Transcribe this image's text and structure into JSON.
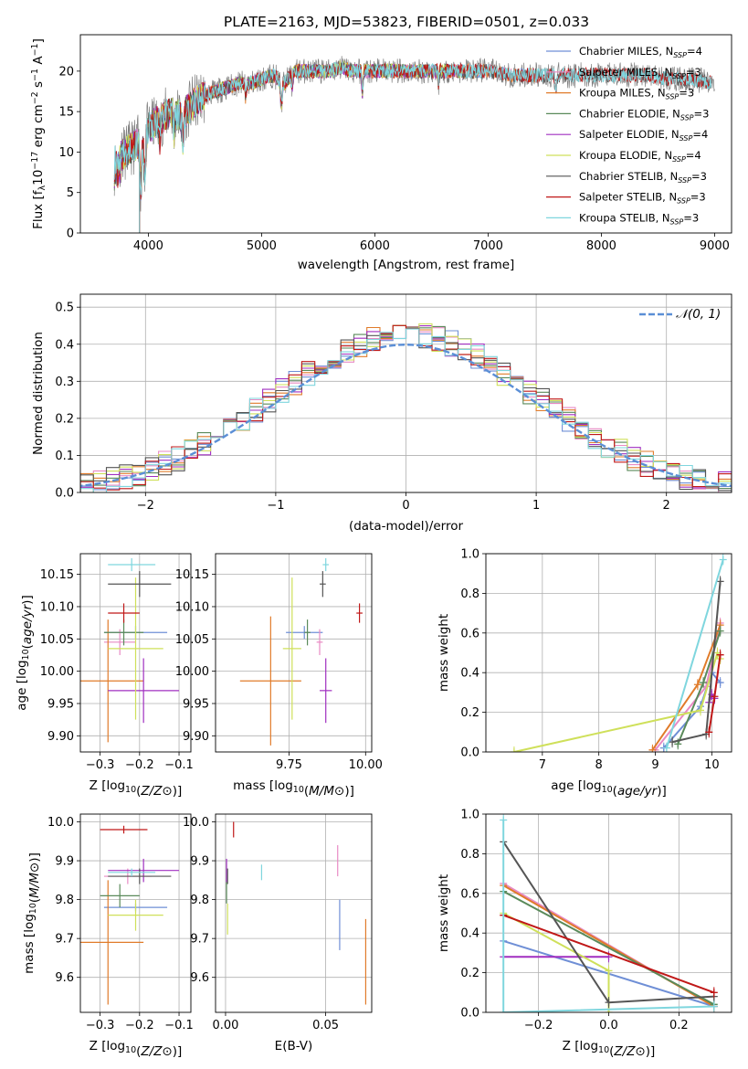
{
  "figure_title": "PLATE=2163, MJD=53823, FIBERID=0501, z=0.033",
  "colors": {
    "Chabrier MILES": "#6f8fd6",
    "Salpeter MILES": "#e88ac4",
    "Kroupa MILES": "#e07b2a",
    "Chabrier ELODIE": "#5a8a5a",
    "Salpeter ELODIE": "#a02fc0",
    "Kroupa ELODIE": "#cfe05a",
    "Chabrier STELIB": "#555555",
    "Salpeter STELIB": "#c01818",
    "Kroupa STELIB": "#7fd6de",
    "gaussian": "#5b8fd6",
    "spectrum": "#808080"
  },
  "chart_data": [
    {
      "id": "spectrum",
      "type": "line",
      "xlabel": "wavelength [Angstrom, rest frame]",
      "ylabel": "Flux [f_λ 10^-17 erg cm^-2 s^-1 A^-1]",
      "xlim": [
        3400,
        9150
      ],
      "ylim": [
        0,
        24.5
      ],
      "xticks": [
        4000,
        5000,
        6000,
        7000,
        8000,
        9000
      ],
      "yticks": [
        0,
        5,
        10,
        15,
        20
      ],
      "grid": false,
      "legend_position": "right",
      "data_range": [
        3700,
        9000
      ],
      "model_ranges": {
        "MILES": [
          3700,
          7430
        ],
        "ELODIE": [
          3700,
          6800
        ],
        "STELIB": [
          3700,
          8970
        ]
      },
      "continuum": [
        [
          3700,
          9
        ],
        [
          3800,
          10
        ],
        [
          3900,
          11
        ],
        [
          4000,
          13
        ],
        [
          4100,
          14
        ],
        [
          4200,
          15
        ],
        [
          4300,
          14.5
        ],
        [
          4400,
          16
        ],
        [
          4500,
          17
        ],
        [
          4600,
          17.5
        ],
        [
          4700,
          18
        ],
        [
          4800,
          18.5
        ],
        [
          4900,
          18.5
        ],
        [
          5000,
          19
        ],
        [
          5100,
          19.5
        ],
        [
          5200,
          18.5
        ],
        [
          5300,
          20
        ],
        [
          5400,
          20
        ],
        [
          5500,
          20
        ],
        [
          5600,
          20
        ],
        [
          5700,
          20.5
        ],
        [
          5800,
          20
        ],
        [
          5900,
          20
        ],
        [
          6000,
          20
        ],
        [
          6200,
          20
        ],
        [
          6400,
          20
        ],
        [
          6600,
          20
        ],
        [
          6800,
          20
        ],
        [
          7000,
          20
        ],
        [
          7200,
          19.5
        ],
        [
          7400,
          19.5
        ],
        [
          7600,
          19.5
        ],
        [
          7800,
          19.5
        ],
        [
          8000,
          19.5
        ],
        [
          8200,
          19.5
        ],
        [
          8400,
          19.5
        ],
        [
          8600,
          19
        ],
        [
          8800,
          19
        ],
        [
          9000,
          18.5
        ]
      ],
      "legend": [
        {
          "label": "Chabrier MILES, N",
          "n": 4
        },
        {
          "label": "Salpeter MILES, N",
          "n": 3
        },
        {
          "label": "Kroupa MILES, N",
          "n": 3
        },
        {
          "label": "Chabrier ELODIE, N",
          "n": 3
        },
        {
          "label": "Salpeter ELODIE, N",
          "n": 4
        },
        {
          "label": "Kroupa ELODIE, N",
          "n": 4
        },
        {
          "label": "Chabrier STELIB, N",
          "n": 3
        },
        {
          "label": "Salpeter STELIB, N",
          "n": 3
        },
        {
          "label": "Kroupa STELIB, N",
          "n": 3
        }
      ],
      "legend_sub": "SSP"
    },
    {
      "id": "residuals",
      "type": "histogram",
      "xlabel": "(data-model)/error",
      "ylabel": "Normed distribution",
      "xlim": [
        -2.5,
        2.5
      ],
      "ylim": [
        0,
        0.535
      ],
      "xticks": [
        -2,
        -1,
        0,
        1,
        2
      ],
      "yticks": [
        0,
        0.1,
        0.2,
        0.3,
        0.4,
        0.5
      ],
      "grid": true,
      "bin_width": 0.1,
      "legend": {
        "label": "𝒩(0, 1)",
        "position": "top-right"
      }
    },
    {
      "id": "age_vs_Z",
      "type": "errorbar",
      "xlabel": "Z [log10(Z/Z⊙)]",
      "ylabel": "age  [log10(age/yr)]",
      "xlim": [
        -0.35,
        -0.07
      ],
      "ylim": [
        9.875,
        10.182
      ],
      "xticks": [
        -0.3,
        -0.2,
        -0.1
      ],
      "yticks": [
        9.9,
        9.95,
        10.0,
        10.05,
        10.1,
        10.15
      ],
      "grid": true,
      "points": [
        {
          "model": "Chabrier MILES",
          "x": -0.21,
          "xerr": 0.08,
          "y": 10.06,
          "yerr": 0.01
        },
        {
          "model": "Salpeter MILES",
          "x": -0.25,
          "xerr": 0.04,
          "y": 10.045,
          "yerr": 0.02
        },
        {
          "model": "Kroupa MILES",
          "x": -0.28,
          "xerr": 0.09,
          "y": 9.985,
          "yerr": 0.095
        },
        {
          "model": "Chabrier ELODIE",
          "x": -0.24,
          "xerr": 0.05,
          "y": 10.06,
          "yerr": 0.02
        },
        {
          "model": "Salpeter ELODIE",
          "x": -0.19,
          "xerr": 0.09,
          "y": 9.97,
          "yerr": 0.05
        },
        {
          "model": "Kroupa ELODIE",
          "x": -0.21,
          "xerr": 0.07,
          "y": 10.035,
          "yerr": 0.11
        },
        {
          "model": "Chabrier STELIB",
          "x": -0.2,
          "xerr": 0.08,
          "y": 10.135,
          "yerr": 0.02
        },
        {
          "model": "Salpeter STELIB",
          "x": -0.24,
          "xerr": 0.04,
          "y": 10.09,
          "yerr": 0.015
        },
        {
          "model": "Kroupa STELIB",
          "x": -0.22,
          "xerr": 0.06,
          "y": 10.165,
          "yerr": 0.01
        }
      ]
    },
    {
      "id": "age_vs_mass",
      "type": "errorbar",
      "xlabel": "mass [log10(M/M⊙)]",
      "ylabel": "",
      "xlim": [
        9.51,
        10.02
      ],
      "ylim": [
        9.875,
        10.182
      ],
      "xticks": [
        9.75,
        10.0
      ],
      "yticks": [
        9.9,
        9.95,
        10.0,
        10.05,
        10.1,
        10.15
      ],
      "grid": true,
      "points": [
        {
          "model": "Chabrier MILES",
          "x": 9.8,
          "xerr": 0.06,
          "y": 10.06,
          "yerr": 0.01
        },
        {
          "model": "Salpeter MILES",
          "x": 9.85,
          "xerr": 0.01,
          "y": 10.045,
          "yerr": 0.02
        },
        {
          "model": "Kroupa MILES",
          "x": 9.69,
          "xerr": 0.1,
          "y": 9.985,
          "yerr": 0.1
        },
        {
          "model": "Chabrier ELODIE",
          "x": 9.81,
          "xerr": 0.01,
          "y": 10.06,
          "yerr": 0.02
        },
        {
          "model": "Salpeter ELODIE",
          "x": 9.87,
          "xerr": 0.02,
          "y": 9.97,
          "yerr": 0.05
        },
        {
          "model": "Kroupa ELODIE",
          "x": 9.76,
          "xerr": 0.03,
          "y": 10.035,
          "yerr": 0.11
        },
        {
          "model": "Chabrier STELIB",
          "x": 9.86,
          "xerr": 0.01,
          "y": 10.135,
          "yerr": 0.02
        },
        {
          "model": "Salpeter STELIB",
          "x": 9.98,
          "xerr": 0.01,
          "y": 10.09,
          "yerr": 0.015
        },
        {
          "model": "Kroupa STELIB",
          "x": 9.87,
          "xerr": 0.01,
          "y": 10.165,
          "yerr": 0.01
        }
      ]
    },
    {
      "id": "mass_weight_vs_age",
      "type": "line",
      "xlabel": "age  [log10(age/yr)]",
      "ylabel": "mass weight",
      "xlim": [
        6.0,
        10.35
      ],
      "ylim": [
        0,
        1.0
      ],
      "xticks": [
        7,
        8,
        9,
        10
      ],
      "yticks": [
        0,
        0.2,
        0.4,
        0.6,
        0.8,
        1.0
      ],
      "grid": true,
      "series": [
        {
          "model": "Chabrier MILES",
          "points": [
            [
              9.15,
              0.02
            ],
            [
              9.8,
              0.23
            ],
            [
              10.0,
              0.4
            ],
            [
              10.15,
              0.35
            ]
          ]
        },
        {
          "model": "Salpeter MILES",
          "points": [
            [
              9.0,
              0.01
            ],
            [
              9.9,
              0.33
            ],
            [
              10.15,
              0.65
            ]
          ]
        },
        {
          "model": "Kroupa MILES",
          "points": [
            [
              8.95,
              0.01
            ],
            [
              9.75,
              0.34
            ],
            [
              10.15,
              0.64
            ]
          ]
        },
        {
          "model": "Chabrier ELODIE",
          "points": [
            [
              9.4,
              0.04
            ],
            [
              9.85,
              0.35
            ],
            [
              10.15,
              0.61
            ]
          ]
        },
        {
          "model": "Salpeter ELODIE",
          "points": [
            [
              9.95,
              0.25
            ],
            [
              10.0,
              0.29
            ],
            [
              10.05,
              0.27
            ]
          ]
        },
        {
          "model": "Kroupa ELODIE",
          "points": [
            [
              6.5,
              0.0
            ],
            [
              9.8,
              0.21
            ],
            [
              10.1,
              0.5
            ],
            [
              10.15,
              0.47
            ]
          ]
        },
        {
          "model": "Chabrier STELIB",
          "points": [
            [
              9.3,
              0.05
            ],
            [
              9.9,
              0.09
            ],
            [
              10.15,
              0.86
            ]
          ]
        },
        {
          "model": "Salpeter STELIB",
          "points": [
            [
              9.95,
              0.1
            ],
            [
              10.05,
              0.28
            ],
            [
              10.15,
              0.49
            ]
          ]
        },
        {
          "model": "Kroupa STELIB",
          "points": [
            [
              9.2,
              0.02
            ],
            [
              10.2,
              0.97
            ]
          ]
        }
      ]
    },
    {
      "id": "mass_vs_Z",
      "type": "errorbar",
      "xlabel": "Z [log10(Z/Z⊙)]",
      "ylabel": "mass [log10(M/M⊙)]",
      "xlim": [
        -0.35,
        -0.07
      ],
      "ylim": [
        9.51,
        10.02
      ],
      "xticks": [
        -0.3,
        -0.2,
        -0.1
      ],
      "yticks": [
        9.6,
        9.7,
        9.8,
        9.9,
        10.0
      ],
      "grid": true,
      "points": [
        {
          "model": "Chabrier MILES",
          "x": -0.21,
          "xerr": 0.08,
          "y": 9.78,
          "yerr": 0.01
        },
        {
          "model": "Salpeter MILES",
          "x": -0.23,
          "xerr": 0.06,
          "y": 9.86,
          "yerr": 0.02
        },
        {
          "model": "Kroupa MILES",
          "x": -0.28,
          "xerr": 0.09,
          "y": 9.69,
          "yerr": 0.16
        },
        {
          "model": "Chabrier ELODIE",
          "x": -0.25,
          "xerr": 0.05,
          "y": 9.81,
          "yerr": 0.03
        },
        {
          "model": "Salpeter ELODIE",
          "x": -0.19,
          "xerr": 0.09,
          "y": 9.875,
          "yerr": 0.03
        },
        {
          "model": "Kroupa ELODIE",
          "x": -0.21,
          "xerr": 0.07,
          "y": 9.76,
          "yerr": 0.04
        },
        {
          "model": "Chabrier STELIB",
          "x": -0.2,
          "xerr": 0.08,
          "y": 9.86,
          "yerr": 0.02
        },
        {
          "model": "Salpeter STELIB",
          "x": -0.24,
          "xerr": 0.06,
          "y": 9.98,
          "yerr": 0.01
        },
        {
          "model": "Kroupa STELIB",
          "x": -0.22,
          "xerr": 0.06,
          "y": 9.87,
          "yerr": 0.01
        }
      ]
    },
    {
      "id": "mass_vs_ebv",
      "type": "errorbar",
      "xlabel": "E(B-V)",
      "ylabel": "",
      "xlim": [
        -0.005,
        0.073
      ],
      "ylim": [
        9.51,
        10.02
      ],
      "xticks": [
        0.0,
        0.05
      ],
      "yticks": [
        9.6,
        9.7,
        9.8,
        9.9,
        10.0
      ],
      "grid": true,
      "points": [
        {
          "model": "Chabrier MILES",
          "x": 0.057,
          "y": 9.735,
          "yerr": 0.065
        },
        {
          "model": "Salpeter MILES",
          "x": 0.056,
          "y": 9.9,
          "yerr": 0.04
        },
        {
          "model": "Kroupa MILES",
          "x": 0.07,
          "y": 9.64,
          "yerr": 0.11
        },
        {
          "model": "Chabrier ELODIE",
          "x": 0.0005,
          "y": 9.82,
          "yerr": 0.03
        },
        {
          "model": "Salpeter ELODIE",
          "x": 0.0005,
          "y": 9.875,
          "yerr": 0.03
        },
        {
          "model": "Kroupa ELODIE",
          "x": 0.001,
          "y": 9.75,
          "yerr": 0.04
        },
        {
          "model": "Chabrier STELIB",
          "x": 0.001,
          "y": 9.86,
          "yerr": 0.02
        },
        {
          "model": "Salpeter STELIB",
          "x": 0.004,
          "y": 9.98,
          "yerr": 0.02
        },
        {
          "model": "Kroupa STELIB",
          "x": 0.018,
          "y": 9.87,
          "yerr": 0.02
        }
      ]
    },
    {
      "id": "mass_weight_vs_Z",
      "type": "line",
      "xlabel": "Z [log10(Z/Z⊙)]",
      "ylabel": "mass weight",
      "xlim": [
        -0.35,
        0.35
      ],
      "ylim": [
        0,
        1.0
      ],
      "xticks": [
        -0.2,
        0.0,
        0.2
      ],
      "yticks": [
        0,
        0.2,
        0.4,
        0.6,
        0.8,
        1.0
      ],
      "grid": true,
      "series": [
        {
          "model": "Chabrier MILES",
          "points": [
            [
              -0.3,
              0.36
            ],
            [
              0.3,
              0.03
            ]
          ]
        },
        {
          "model": "Salpeter MILES",
          "points": [
            [
              -0.3,
              0.65
            ],
            [
              0.3,
              0.03
            ]
          ]
        },
        {
          "model": "Kroupa MILES",
          "points": [
            [
              -0.3,
              0.64
            ],
            [
              0.3,
              0.03
            ]
          ]
        },
        {
          "model": "Chabrier ELODIE",
          "points": [
            [
              -0.3,
              0.61
            ],
            [
              0.3,
              0.04
            ]
          ]
        },
        {
          "model": "Salpeter ELODIE",
          "points": [
            [
              -0.3,
              0.28
            ],
            [
              0.0,
              0.28
            ]
          ]
        },
        {
          "model": "Kroupa ELODIE",
          "points": [
            [
              -0.3,
              0.5
            ],
            [
              0.0,
              0.21
            ],
            [
              0.0,
              0.0
            ]
          ]
        },
        {
          "model": "Chabrier STELIB",
          "points": [
            [
              -0.3,
              0.86
            ],
            [
              0.0,
              0.05
            ],
            [
              0.3,
              0.08
            ]
          ]
        },
        {
          "model": "Salpeter STELIB",
          "points": [
            [
              -0.3,
              0.49
            ],
            [
              0.3,
              0.1
            ]
          ]
        },
        {
          "model": "Kroupa STELIB",
          "points": [
            [
              -0.3,
              0.97
            ],
            [
              -0.3,
              0.0
            ],
            [
              0.3,
              0.03
            ]
          ]
        }
      ]
    }
  ]
}
